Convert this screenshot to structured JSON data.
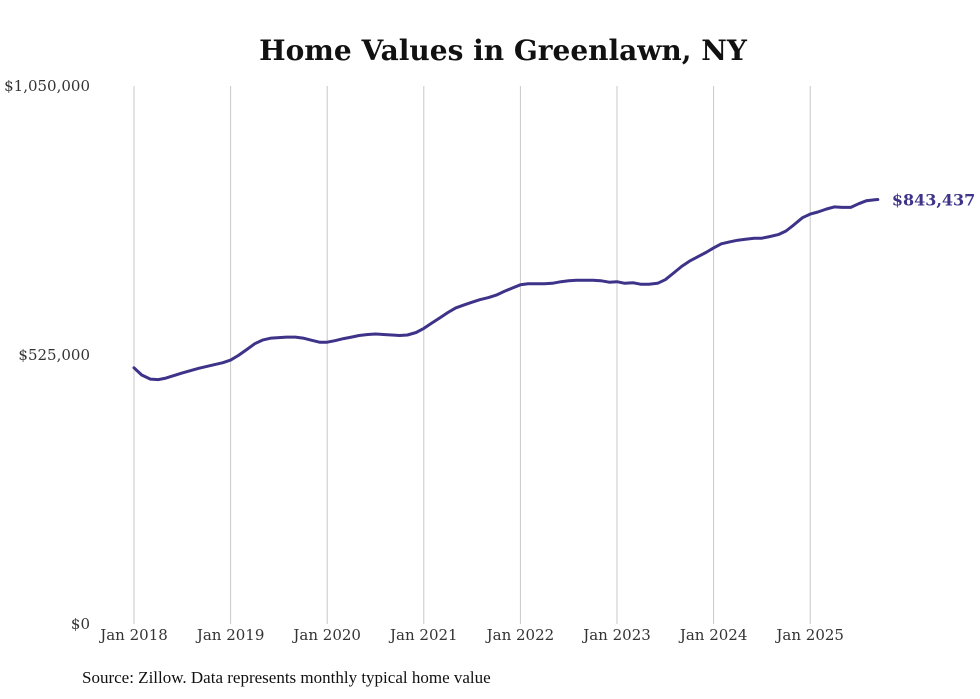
{
  "chart_data": {
    "type": "line",
    "title": "Home Values in Greenlawn, NY",
    "xlabel": "",
    "ylabel": "",
    "ylim": [
      0,
      1050000
    ],
    "y_ticks": [
      {
        "value": 0,
        "label": "$0"
      },
      {
        "value": 525000,
        "label": "$525,000"
      },
      {
        "value": 1050000,
        "label": "$1,050,000"
      }
    ],
    "x_range": [
      2018.0,
      2025.75
    ],
    "x_ticks": [
      {
        "value": 2018,
        "label": "Jan 2018"
      },
      {
        "value": 2019,
        "label": "Jan 2019"
      },
      {
        "value": 2020,
        "label": "Jan 2020"
      },
      {
        "value": 2021,
        "label": "Jan 2021"
      },
      {
        "value": 2022,
        "label": "Jan 2022"
      },
      {
        "value": 2023,
        "label": "Jan 2023"
      },
      {
        "value": 2024,
        "label": "Jan 2024"
      },
      {
        "value": 2025,
        "label": "Jan 2025"
      }
    ],
    "grid": "vertical",
    "series": [
      {
        "name": "Typical home value",
        "color": "#3d3389",
        "end_label": "$843,437",
        "points": [
          [
            2018.0,
            500000
          ],
          [
            2018.08,
            486000
          ],
          [
            2018.17,
            478000
          ],
          [
            2018.25,
            477000
          ],
          [
            2018.33,
            480000
          ],
          [
            2018.5,
            490000
          ],
          [
            2018.67,
            499000
          ],
          [
            2018.83,
            506000
          ],
          [
            2018.92,
            510000
          ],
          [
            2019.0,
            515000
          ],
          [
            2019.08,
            524000
          ],
          [
            2019.17,
            536000
          ],
          [
            2019.25,
            547000
          ],
          [
            2019.33,
            554000
          ],
          [
            2019.42,
            558000
          ],
          [
            2019.58,
            560000
          ],
          [
            2019.67,
            560000
          ],
          [
            2019.75,
            558000
          ],
          [
            2019.83,
            554000
          ],
          [
            2019.92,
            550000
          ],
          [
            2020.0,
            550000
          ],
          [
            2020.08,
            553000
          ],
          [
            2020.17,
            557000
          ],
          [
            2020.25,
            560000
          ],
          [
            2020.33,
            563000
          ],
          [
            2020.42,
            565000
          ],
          [
            2020.5,
            566000
          ],
          [
            2020.58,
            565000
          ],
          [
            2020.67,
            564000
          ],
          [
            2020.75,
            563000
          ],
          [
            2020.83,
            564000
          ],
          [
            2020.92,
            569000
          ],
          [
            2021.0,
            577000
          ],
          [
            2021.08,
            587000
          ],
          [
            2021.17,
            598000
          ],
          [
            2021.25,
            608000
          ],
          [
            2021.33,
            617000
          ],
          [
            2021.42,
            623000
          ],
          [
            2021.5,
            628000
          ],
          [
            2021.58,
            633000
          ],
          [
            2021.67,
            637000
          ],
          [
            2021.75,
            642000
          ],
          [
            2021.83,
            649000
          ],
          [
            2021.92,
            656000
          ],
          [
            2022.0,
            662000
          ],
          [
            2022.08,
            664000
          ],
          [
            2022.25,
            664000
          ],
          [
            2022.33,
            665000
          ],
          [
            2022.42,
            668000
          ],
          [
            2022.5,
            670000
          ],
          [
            2022.58,
            671000
          ],
          [
            2022.75,
            671000
          ],
          [
            2022.83,
            670000
          ],
          [
            2022.92,
            667000
          ],
          [
            2023.0,
            668000
          ],
          [
            2023.08,
            665000
          ],
          [
            2023.17,
            666000
          ],
          [
            2023.25,
            663000
          ],
          [
            2023.33,
            663000
          ],
          [
            2023.42,
            665000
          ],
          [
            2023.5,
            672000
          ],
          [
            2023.58,
            684000
          ],
          [
            2023.67,
            698000
          ],
          [
            2023.75,
            708000
          ],
          [
            2023.83,
            716000
          ],
          [
            2023.92,
            725000
          ],
          [
            2024.0,
            734000
          ],
          [
            2024.08,
            742000
          ],
          [
            2024.17,
            746000
          ],
          [
            2024.25,
            749000
          ],
          [
            2024.33,
            751000
          ],
          [
            2024.42,
            753000
          ],
          [
            2024.5,
            753000
          ],
          [
            2024.58,
            756000
          ],
          [
            2024.67,
            760000
          ],
          [
            2024.75,
            767000
          ],
          [
            2024.83,
            779000
          ],
          [
            2024.92,
            793000
          ],
          [
            2025.0,
            800000
          ],
          [
            2025.08,
            804000
          ],
          [
            2025.17,
            810000
          ],
          [
            2025.25,
            814000
          ],
          [
            2025.33,
            813000
          ],
          [
            2025.42,
            813000
          ],
          [
            2025.5,
            820000
          ],
          [
            2025.58,
            826000
          ],
          [
            2025.67,
            828000
          ],
          [
            2025.7,
            828500
          ]
        ]
      }
    ],
    "source_note": "Source: Zillow. Data represents monthly typical home value"
  }
}
